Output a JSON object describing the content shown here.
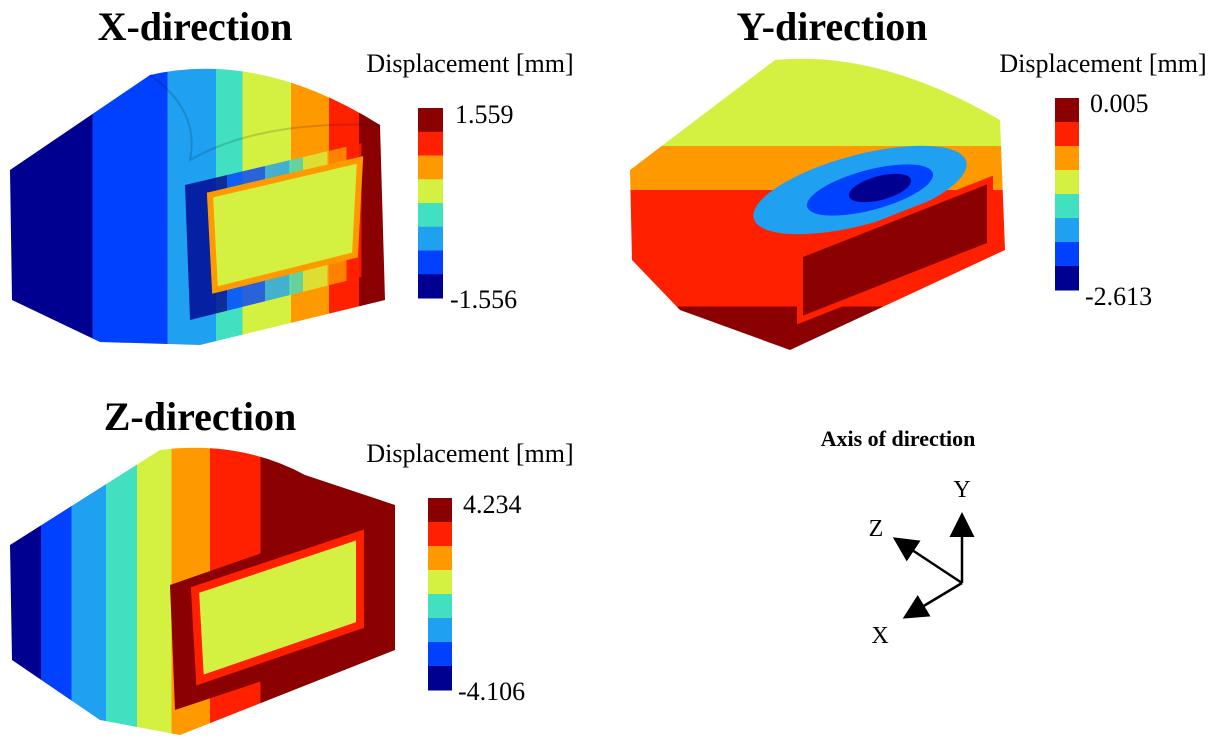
{
  "panels": [
    {
      "title": "X-direction",
      "legend_label": "Displacement [mm]",
      "max": "1.559",
      "min": "-1.556"
    },
    {
      "title": "Y-direction",
      "legend_label": "Displacement [mm]",
      "max": "0.005",
      "min": "-2.613"
    },
    {
      "title": "Z-direction",
      "legend_label": "Displacement [mm]",
      "max": "4.234",
      "min": "-4.106"
    }
  ],
  "axis_diagram": {
    "title": "Axis of direction",
    "labels": {
      "x": "X",
      "y": "Y",
      "z": "Z"
    }
  }
}
